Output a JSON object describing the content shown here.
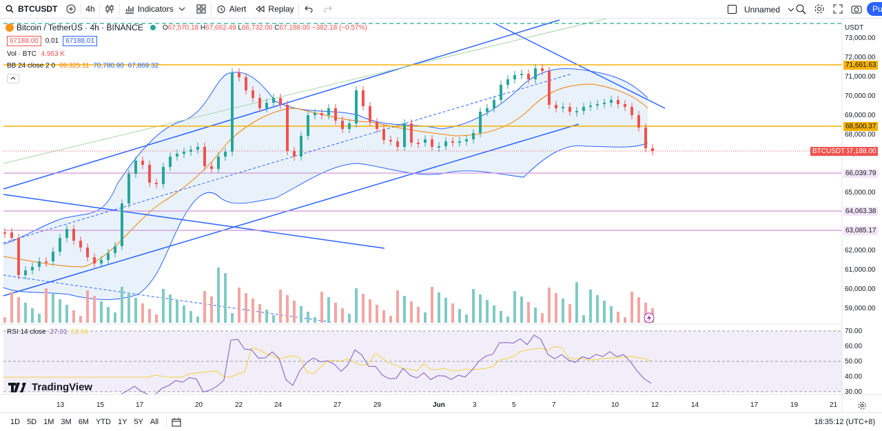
{
  "toolbar": {
    "symbol": "BTCUSDT",
    "interval": "4h",
    "indicators_label": "Indicators",
    "alert_label": "Alert",
    "replay_label": "Replay",
    "layout_name": "Unnamed",
    "publish_label": "Pu"
  },
  "legend": {
    "title": "Bitcoin / TetherUS · 4h · BINANCE",
    "o_label": "O",
    "o": "67,570.18",
    "h_label": "H",
    "h": "67,662.49",
    "l_label": "L",
    "l": "66,732.00",
    "c_label": "C",
    "c": "67,188.00",
    "change": "−382.18 (−0.57%)",
    "bid": "67188.00",
    "spread": "0.01",
    "ask": "67188.01",
    "vol_label": "Vol · BTC",
    "vol_value": "4.963 K",
    "bb_label": "BB 24 close 2 0",
    "bb_v1": "69,325.11",
    "bb_v2": "70,780.90",
    "bb_v3": "67,869.32",
    "rsi_label": "RSI 14 close",
    "rsi_v1": "27.01",
    "rsi_v2": "52.56"
  },
  "price_axis": {
    "currency": "USDT",
    "ticks": [
      "73,000.00",
      "72,000.00",
      "71,000.00",
      "70,000.00",
      "69,000.00",
      "68,000.00",
      "67,000.00",
      "66,000.00",
      "65,000.00",
      "64,000.00",
      "63,000.00",
      "62,000.00",
      "61,000.00",
      "60,000.00",
      "59,000.00"
    ],
    "levels": [
      "71,661.63",
      "68,500.37",
      "66,039.79",
      "64,063.38",
      "63,085.17"
    ],
    "last_symbol": "BTCUSDT",
    "last_price": "67,188.00"
  },
  "rsi_axis": {
    "ticks": [
      "70.00",
      "60.00",
      "50.00",
      "40.00",
      "30.00"
    ]
  },
  "time_axis": {
    "ticks": [
      "13",
      "15",
      "17",
      "20",
      "22",
      "24",
      "27",
      "29",
      "Jun",
      "3",
      "5",
      "7",
      "10",
      "12",
      "14",
      "17",
      "19",
      "21"
    ]
  },
  "watermark": "TradingView",
  "bottom": {
    "ranges": [
      "1D",
      "5D",
      "1M",
      "3M",
      "6M",
      "YTD",
      "1Y",
      "5Y",
      "All"
    ],
    "clock": "18:35:12 (UTC+8)"
  },
  "colors": {
    "up": "#26a69a",
    "down": "#ef5350",
    "bb_fill": "#e3effa",
    "level": "#f5b100",
    "accent": "#2962ff"
  }
}
